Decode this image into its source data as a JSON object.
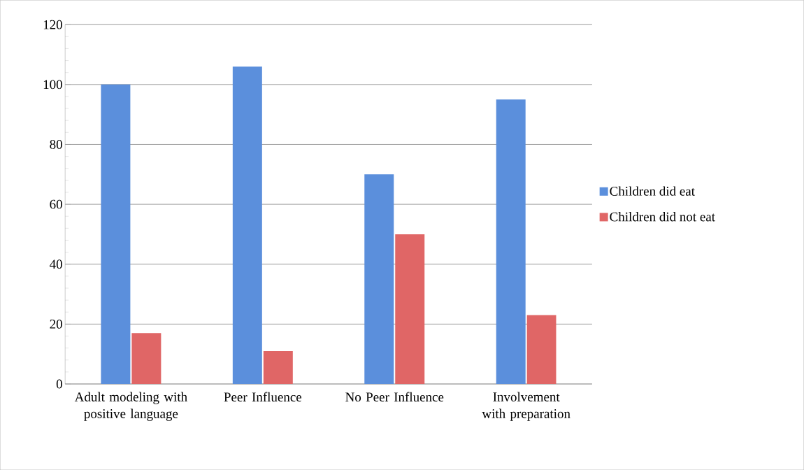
{
  "chart_data": {
    "type": "bar",
    "categories": [
      "Adult modeling with positive language",
      "Peer Influence",
      "No Peer Influence",
      "Involvement with preparation"
    ],
    "series": [
      {
        "name": "Children did eat",
        "color": "#5b8fdc",
        "values": [
          100,
          106,
          70,
          95
        ]
      },
      {
        "name": "Children did not eat",
        "color": "#e06666",
        "values": [
          17,
          11,
          50,
          23
        ]
      }
    ],
    "ylim": [
      0,
      120
    ],
    "yticks": [
      0,
      20,
      40,
      60,
      80,
      100,
      120
    ],
    "grid": "y",
    "legend": "right"
  }
}
